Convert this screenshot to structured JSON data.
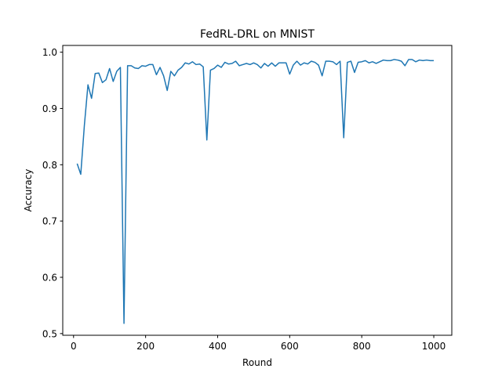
{
  "chart_data": {
    "type": "line",
    "title": "FedRL-DRL on MNIST",
    "xlabel": "Round",
    "ylabel": "Accuracy",
    "xlim": [
      -30,
      1050
    ],
    "ylim": [
      0.497,
      1.012
    ],
    "xticks": [
      0,
      200,
      400,
      600,
      800,
      1000
    ],
    "yticks": [
      0.5,
      0.6,
      0.7,
      0.8,
      0.9,
      1.0
    ],
    "ytick_labels": [
      "0.5",
      "0.6",
      "0.7",
      "0.8",
      "0.9",
      "1.0"
    ],
    "grid": false,
    "color": "#1f77b4",
    "series": [
      {
        "x": [
          10,
          20,
          30,
          40,
          50,
          60,
          70,
          80,
          90,
          100,
          110,
          120,
          130,
          140,
          150,
          160,
          170,
          180,
          190,
          200,
          210,
          220,
          230,
          240,
          250,
          260,
          270,
          280,
          290,
          300,
          310,
          320,
          330,
          340,
          350,
          360,
          370,
          380,
          390,
          400,
          410,
          420,
          430,
          440,
          450,
          460,
          470,
          480,
          490,
          500,
          510,
          520,
          530,
          540,
          550,
          560,
          570,
          580,
          590,
          600,
          610,
          620,
          630,
          640,
          650,
          660,
          670,
          680,
          690,
          700,
          710,
          720,
          730,
          740,
          750,
          760,
          770,
          780,
          790,
          800,
          810,
          820,
          830,
          840,
          850,
          860,
          870,
          880,
          890,
          900,
          910,
          920,
          930,
          940,
          950,
          960,
          970,
          980,
          990,
          1000
        ],
        "y": [
          0.802,
          0.783,
          0.87,
          0.942,
          0.918,
          0.962,
          0.963,
          0.946,
          0.951,
          0.971,
          0.948,
          0.966,
          0.973,
          0.518,
          0.976,
          0.976,
          0.972,
          0.971,
          0.976,
          0.975,
          0.978,
          0.978,
          0.96,
          0.973,
          0.958,
          0.932,
          0.966,
          0.958,
          0.968,
          0.973,
          0.981,
          0.979,
          0.983,
          0.978,
          0.979,
          0.974,
          0.844,
          0.968,
          0.971,
          0.977,
          0.973,
          0.982,
          0.979,
          0.98,
          0.984,
          0.976,
          0.978,
          0.98,
          0.978,
          0.981,
          0.978,
          0.972,
          0.98,
          0.975,
          0.981,
          0.975,
          0.981,
          0.981,
          0.981,
          0.961,
          0.977,
          0.984,
          0.977,
          0.981,
          0.979,
          0.984,
          0.982,
          0.977,
          0.958,
          0.984,
          0.984,
          0.983,
          0.978,
          0.984,
          0.848,
          0.982,
          0.984,
          0.964,
          0.982,
          0.983,
          0.985,
          0.981,
          0.983,
          0.98,
          0.983,
          0.986,
          0.985,
          0.985,
          0.987,
          0.986,
          0.984,
          0.976,
          0.987,
          0.987,
          0.983,
          0.986,
          0.985,
          0.986,
          0.985,
          0.985
        ]
      }
    ]
  }
}
